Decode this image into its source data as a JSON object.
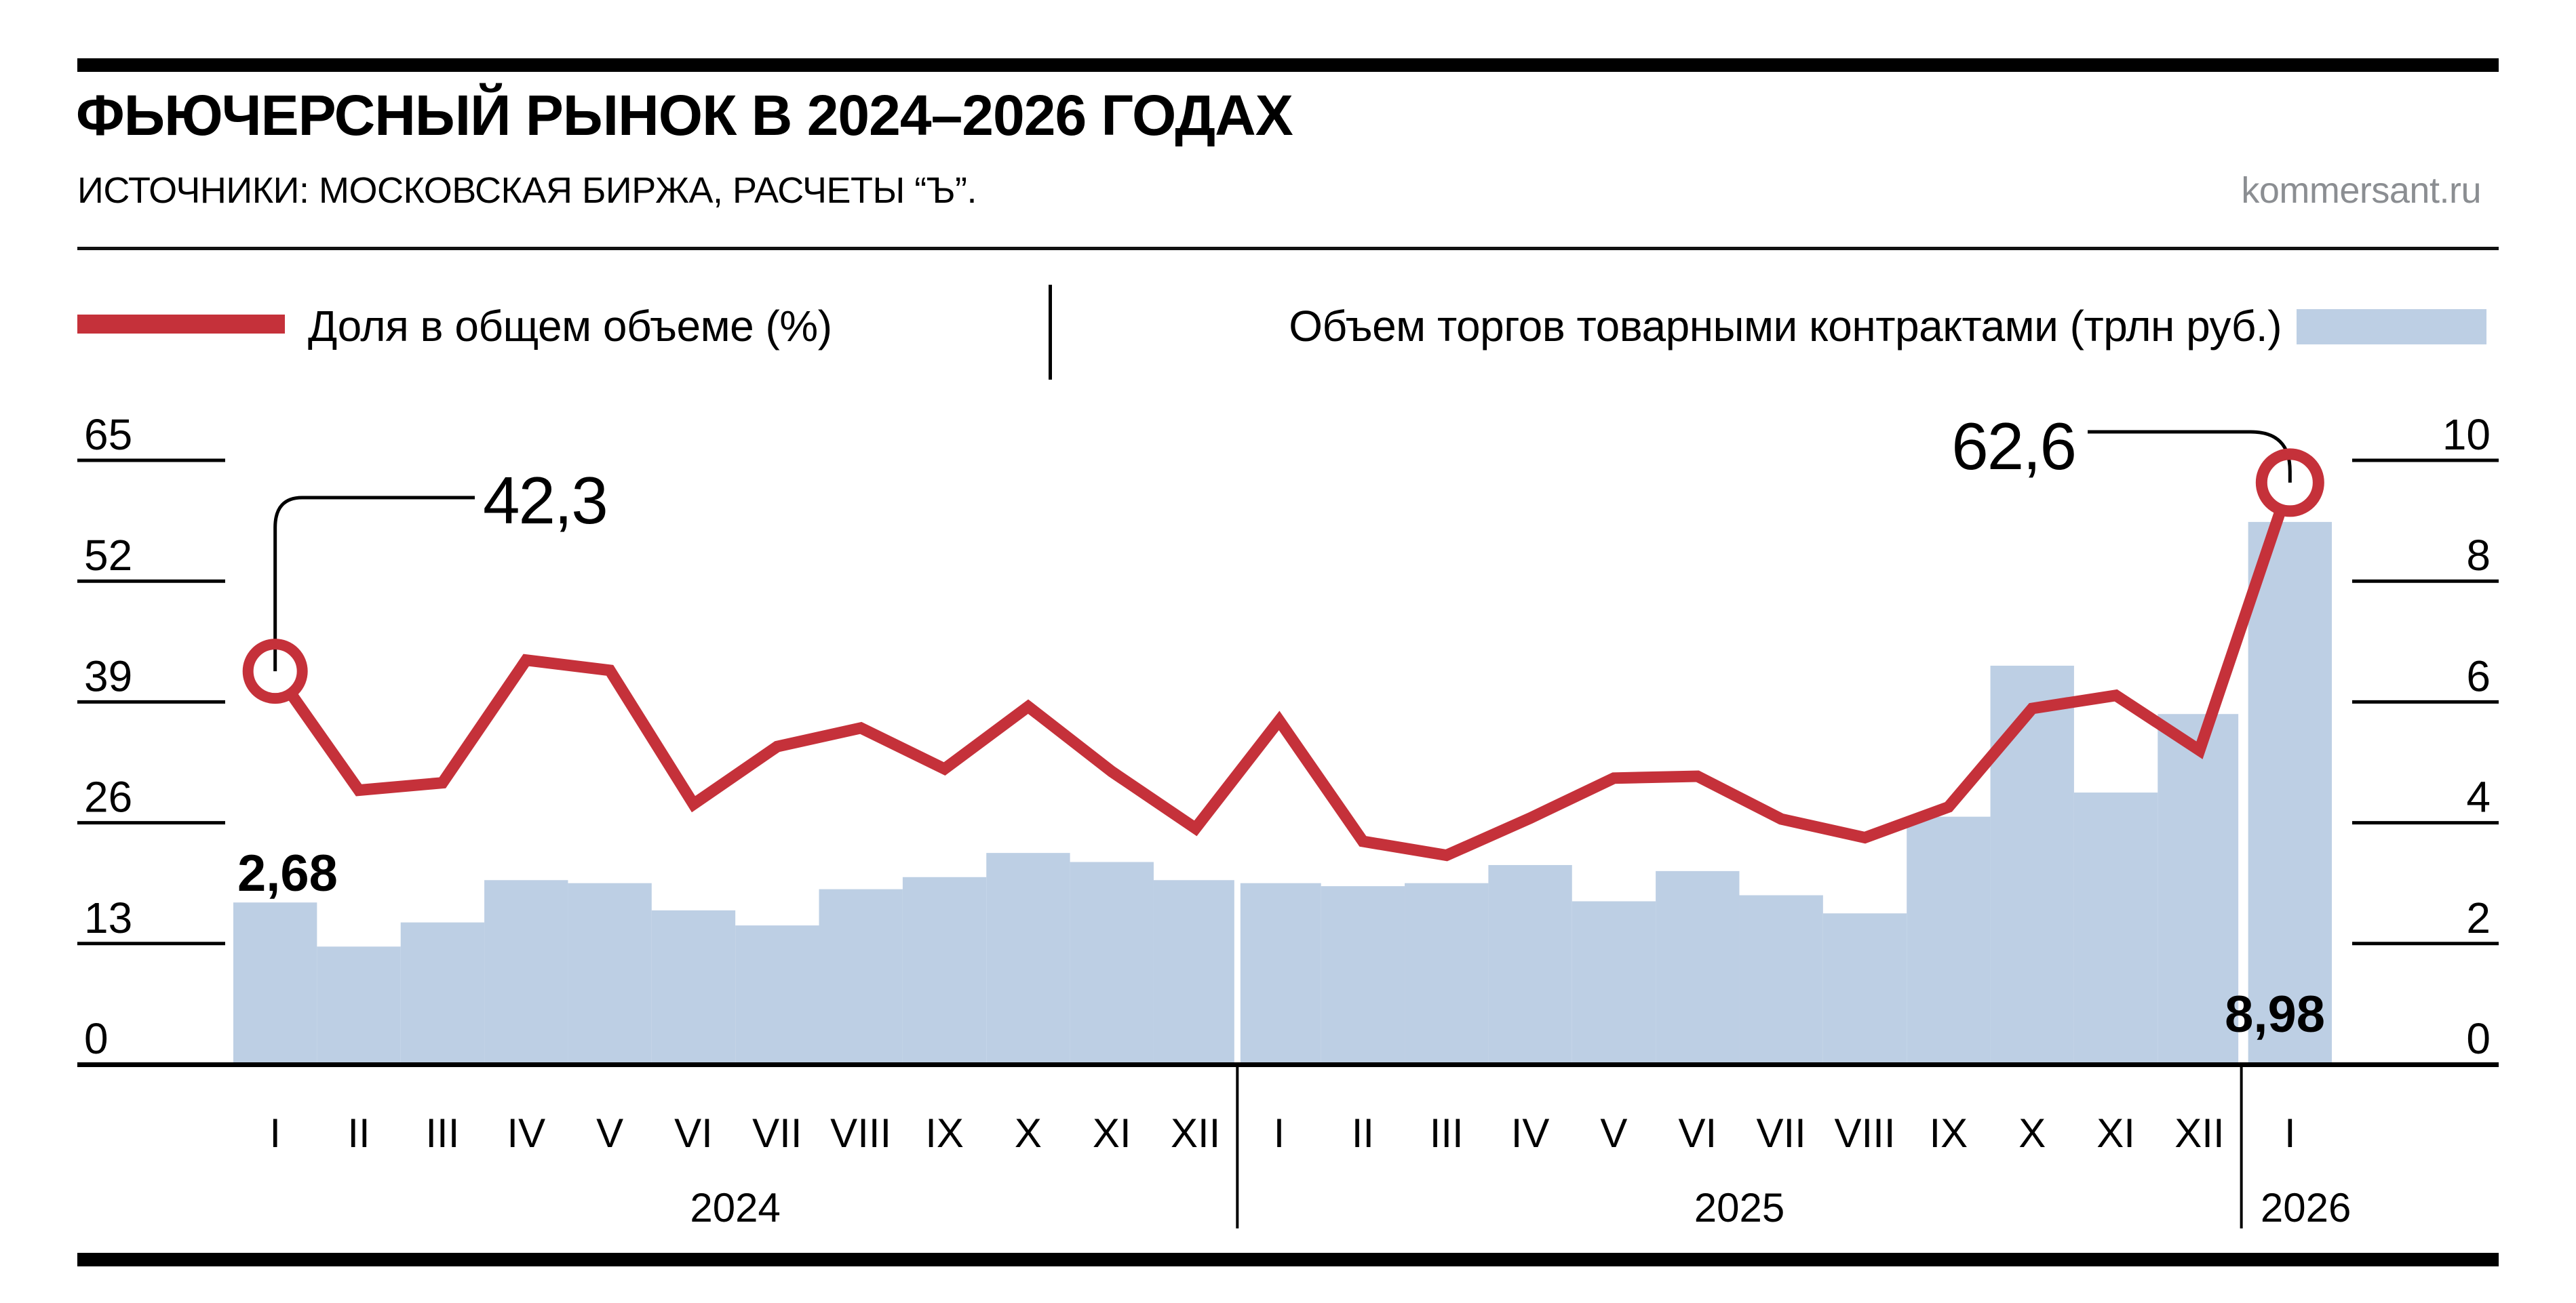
{
  "header": {
    "title": "ФЬЮЧЕРСНЫЙ РЫНОК В 2024–2026 ГОДАХ",
    "source": "ИСТОЧНИКИ: МОСКОВСКАЯ БИРЖА, РАСЧЕТЫ “Ъ”.",
    "watermark": "kommersant.ru"
  },
  "legend": {
    "line_label": "Доля в общем объеме (%)",
    "bar_label": "Объем торгов товарными контрактами (трлн руб.)"
  },
  "colors": {
    "line": "#c5313a",
    "bar": "#bdcfe4",
    "black": "#000000",
    "watermark_gray": "#8b8e92"
  },
  "chart_data": {
    "type": "line+bar",
    "title": "ФЬЮЧЕРСНЫЙ РЫНОК В 2024–2026 ГОДАХ",
    "categories": [
      "I",
      "II",
      "III",
      "IV",
      "V",
      "VI",
      "VII",
      "VIII",
      "IX",
      "X",
      "XI",
      "XII",
      "I",
      "II",
      "III",
      "IV",
      "V",
      "VI",
      "VII",
      "VIII",
      "IX",
      "X",
      "XI",
      "XII",
      "I"
    ],
    "year_groups": [
      {
        "year": "2024",
        "months": 12
      },
      {
        "year": "2025",
        "months": 12
      },
      {
        "year": "2026",
        "months": 1
      }
    ],
    "series": [
      {
        "name": "Доля в общем объеме (%)",
        "type": "line",
        "axis": "left",
        "values": [
          42.3,
          29.5,
          30.3,
          43.5,
          42.4,
          28.0,
          34.2,
          36.2,
          31.8,
          38.5,
          31.5,
          25.4,
          37.0,
          24.0,
          22.5,
          26.5,
          30.8,
          31.0,
          26.4,
          24.4,
          27.7,
          38.3,
          39.7,
          33.8,
          62.6
        ]
      },
      {
        "name": "Объем торгов товарными контрактами (трлн руб.)",
        "type": "bar",
        "axis": "right",
        "values": [
          2.68,
          1.95,
          2.35,
          3.05,
          3.0,
          2.55,
          2.3,
          2.9,
          3.1,
          3.5,
          3.35,
          3.05,
          3.0,
          2.95,
          3.0,
          3.3,
          2.7,
          3.2,
          2.8,
          2.5,
          4.1,
          6.6,
          4.5,
          5.8,
          8.98
        ]
      }
    ],
    "left_axis": {
      "label": "Доля в общем объеме (%)",
      "ticks": [
        0,
        13,
        26,
        39,
        52,
        65
      ],
      "min": 0,
      "max": 65
    },
    "right_axis": {
      "label": "Объем торгов товарными контрактами (трлн руб.)",
      "ticks": [
        0,
        2,
        4,
        6,
        8,
        10
      ],
      "min": 0,
      "max": 10
    },
    "grid": false,
    "legend_position": "top",
    "annotations": [
      {
        "name": "first-share",
        "text": "42,3",
        "value": 42.3,
        "point_index": 0,
        "series": "line"
      },
      {
        "name": "last-share",
        "text": "62,6",
        "value": 62.6,
        "point_index": 24,
        "series": "line"
      },
      {
        "name": "first-volume",
        "text": "2,68",
        "value": 2.68,
        "point_index": 0,
        "series": "bar"
      },
      {
        "name": "last-volume",
        "text": "8,98",
        "value": 8.98,
        "point_index": 24,
        "series": "bar"
      }
    ]
  }
}
